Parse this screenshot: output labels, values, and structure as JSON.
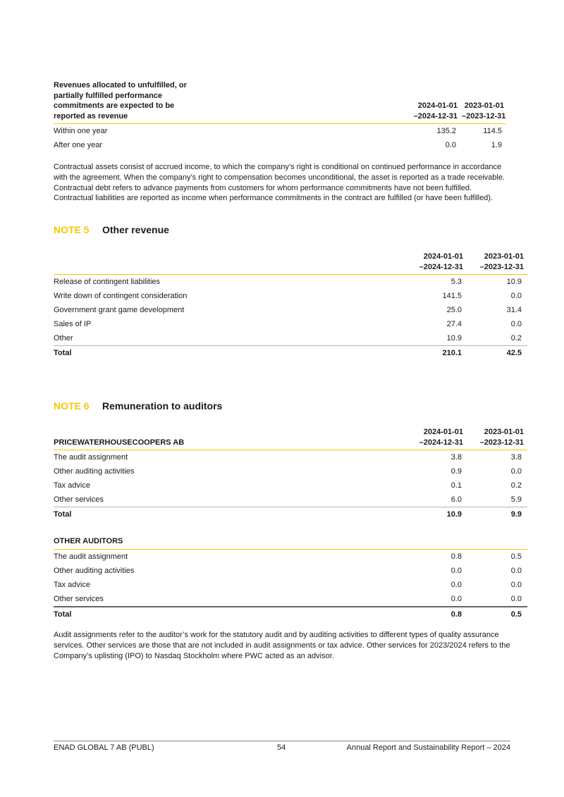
{
  "table1": {
    "title_lines": [
      "Revenues allocated to unfulfilled, or",
      "partially fulfilled performance",
      "commitments are expected to be",
      "reported as revenue"
    ],
    "columns": [
      [
        "2024-01-01",
        "–2024-12-31"
      ],
      [
        "2023-01-01",
        "–2023-12-31"
      ]
    ],
    "rows": [
      {
        "label": "Within one year",
        "v1": "135.2",
        "v2": "114.5"
      },
      {
        "label": "After one year",
        "v1": "0.0",
        "v2": "1.9"
      }
    ]
  },
  "paragraph1": "Contractual assets consist of accrued income, to which the company’s right is conditional on continued performance in accordance with the agreement. When the company’s right to compensation becomes unconditional, the asset is reported as a trade receivable. Contractual debt refers to advance payments from customers for whom performance commitments have not been fulfilled. Contractual liabilities are reported as income when performance commitments in the contract are fulfilled (or have been fulfilled).",
  "note5": {
    "number": "NOTE 5",
    "title": "Other revenue",
    "columns": [
      [
        "2024-01-01",
        "–2024-12-31"
      ],
      [
        "2023-01-01",
        "–2023-12-31"
      ]
    ],
    "rows": [
      {
        "label": "Release of contingent liabilities",
        "v1": "5.3",
        "v2": "10.9"
      },
      {
        "label": "Write down of contingent consideration",
        "v1": "141.5",
        "v2": "0.0"
      },
      {
        "label": "Government grant game development",
        "v1": "25.0",
        "v2": "31.4"
      },
      {
        "label": "Sales of IP",
        "v1": "27.4",
        "v2": "0.0"
      },
      {
        "label": "Other",
        "v1": "10.9",
        "v2": "0.2"
      }
    ],
    "total": {
      "label": "Total",
      "v1": "210.1",
      "v2": "42.5"
    }
  },
  "note6": {
    "number": "NOTE 6",
    "title": "Remuneration to auditors",
    "columns": [
      [
        "2024-01-01",
        "–2024-12-31"
      ],
      [
        "2023-01-01",
        "–2023-12-31"
      ]
    ],
    "pwc": {
      "heading": "PRICEWATERHOUSECOOPERS AB",
      "rows": [
        {
          "label": "The audit assignment",
          "v1": "3.8",
          "v2": "3.8"
        },
        {
          "label": "Other auditing activities",
          "v1": "0.9",
          "v2": "0.0"
        },
        {
          "label": "Tax advice",
          "v1": "0.1",
          "v2": "0.2"
        },
        {
          "label": "Other services",
          "v1": "6.0",
          "v2": "5.9"
        }
      ],
      "total": {
        "label": "Total",
        "v1": "10.9",
        "v2": "9.9"
      }
    },
    "other": {
      "heading": "OTHER AUDITORS",
      "rows": [
        {
          "label": "The audit assignment",
          "v1": "0.8",
          "v2": "0.5"
        },
        {
          "label": "Other auditing activities",
          "v1": "0.0",
          "v2": "0.0"
        },
        {
          "label": "Tax advice",
          "v1": "0.0",
          "v2": "0.0"
        },
        {
          "label": "Other services",
          "v1": "0.0",
          "v2": "0.0"
        }
      ],
      "total": {
        "label": "Total",
        "v1": "0.8",
        "v2": "0.5"
      }
    },
    "paragraph": "Audit assignments refer to the auditor’s work for the statutory audit and by auditing activities to different types of quality assurance services. Other services are those that are not included in audit assignments or tax advice. Other services for 2023/2024 refers to the Company’s uplisting (IPO) to Nasdaq Stockholm where PWC acted as an advisor."
  },
  "footer": {
    "company": "ENAD GLOBAL 7 AB (PUBL)",
    "page": "54",
    "report": "Annual Report and Sustainability Report – 2024"
  },
  "colors": {
    "accent": "#f5c800"
  }
}
